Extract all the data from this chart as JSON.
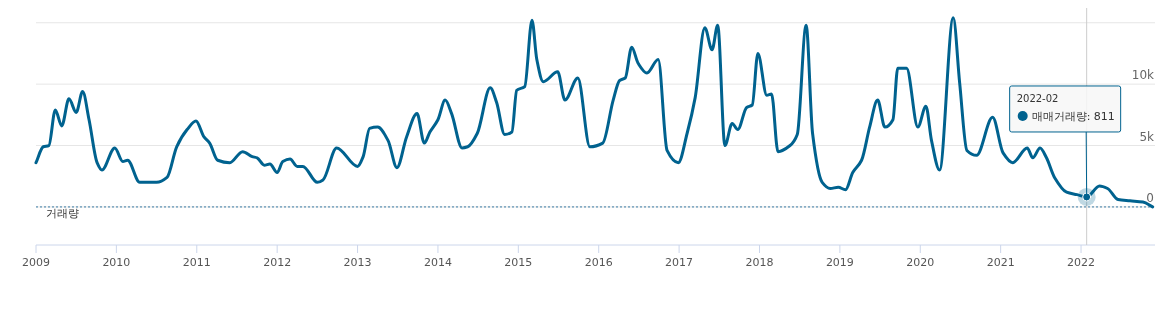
{
  "chart_data": {
    "type": "line",
    "xlim": [
      2009,
      2022.92
    ],
    "ylim": [
      -3100,
      16200
    ],
    "xticks": [
      2009,
      2010,
      2011,
      2012,
      2013,
      2014,
      2015,
      2016,
      2017,
      2018,
      2019,
      2020,
      2021,
      2022
    ],
    "yticks": [
      {
        "value": 0,
        "label": "0"
      },
      {
        "value": 5000,
        "label": "5k"
      },
      {
        "value": 10000,
        "label": "10k"
      },
      {
        "value": 15000,
        "label": null
      }
    ],
    "grid": "y",
    "marker": "none",
    "line_style": "solid",
    "series": [
      {
        "color": "#00628f",
        "x": [
          2009.0,
          2009.09,
          2009.16,
          2009.24,
          2009.32,
          2009.41,
          2009.5,
          2009.58,
          2009.66,
          2009.76,
          2009.82,
          2009.98,
          2010.08,
          2010.14,
          2010.29,
          2010.5,
          2010.63,
          2010.75,
          2010.88,
          2010.99,
          2011.09,
          2011.16,
          2011.26,
          2011.41,
          2011.57,
          2011.69,
          2011.75,
          2011.84,
          2011.91,
          2012.0,
          2012.07,
          2012.16,
          2012.25,
          2012.32,
          2012.5,
          2012.57,
          2012.74,
          2013.0,
          2013.07,
          2013.15,
          2013.25,
          2013.38,
          2013.49,
          2013.61,
          2013.74,
          2013.83,
          2013.9,
          2014.0,
          2014.09,
          2014.17,
          2014.3,
          2014.37,
          2014.49,
          2014.65,
          2014.73,
          2014.83,
          2014.92,
          2014.98,
          2015.08,
          2015.17,
          2015.23,
          2015.31,
          2015.49,
          2015.58,
          2015.74,
          2015.89,
          2016.05,
          2016.18,
          2016.26,
          2016.33,
          2016.41,
          2016.49,
          2016.6,
          2016.74,
          2016.85,
          2016.99,
          2017.1,
          2017.2,
          2017.32,
          2017.41,
          2017.48,
          2017.57,
          2017.66,
          2017.73,
          2017.84,
          2017.91,
          2017.98,
          2018.09,
          2018.15,
          2018.23,
          2018.38,
          2018.47,
          2018.58,
          2018.66,
          2018.78,
          2018.88,
          2018.98,
          2019.07,
          2019.16,
          2019.27,
          2019.37,
          2019.47,
          2019.56,
          2019.66,
          2019.72,
          2019.83,
          2019.97,
          2020.07,
          2020.14,
          2020.24,
          2020.41,
          2020.49,
          2020.58,
          2020.7,
          2020.9,
          2021.03,
          2021.15,
          2021.33,
          2021.4,
          2021.49,
          2021.57,
          2021.67,
          2021.82,
          2021.95,
          2022.07,
          2022.23,
          2022.33,
          2022.46,
          2022.61,
          2022.77,
          2022.89
        ],
        "values": [
          3600,
          4900,
          5000,
          7900,
          6600,
          8800,
          7700,
          9400,
          7100,
          3600,
          3000,
          4800,
          3700,
          3800,
          2000,
          2000,
          2400,
          4900,
          6300,
          7000,
          5700,
          5200,
          3800,
          3600,
          4500,
          4100,
          4000,
          3400,
          3500,
          2800,
          3700,
          3900,
          3300,
          3300,
          2000,
          2200,
          4800,
          3300,
          4100,
          6400,
          6500,
          5400,
          3200,
          5700,
          7600,
          5200,
          6100,
          7100,
          8700,
          7600,
          4800,
          4900,
          6000,
          9700,
          8500,
          5900,
          6100,
          9500,
          9800,
          15200,
          12000,
          10200,
          11000,
          8700,
          10500,
          4900,
          5200,
          8700,
          10300,
          10500,
          13000,
          11700,
          10900,
          12000,
          4600,
          3600,
          6000,
          8900,
          14600,
          12800,
          14800,
          5000,
          6800,
          6300,
          8100,
          8300,
          12500,
          9100,
          9200,
          4500,
          5000,
          5900,
          14800,
          6000,
          2000,
          1500,
          1600,
          1400,
          2800,
          3800,
          6500,
          8700,
          6500,
          7100,
          11300,
          11300,
          6500,
          8200,
          5400,
          3000,
          15400,
          10100,
          4600,
          4200,
          7300,
          4400,
          3600,
          4800,
          4000,
          4800,
          4000,
          2400,
          1200,
          1000,
          811,
          1700,
          1500,
          600,
          500,
          400,
          0
        ]
      }
    ],
    "ref_lines": [
      {
        "axis": "y",
        "value": 0,
        "label": "거래량",
        "color": "#3a7ca5",
        "line_style": "dotted"
      },
      {
        "axis": "x",
        "value": 2022.07,
        "color": "#cccccc",
        "line_style": "solid"
      }
    ],
    "annotations": [
      "2022-02",
      {
        "text": "매매거래량: 811",
        "x": 2022.07,
        "y": 811
      }
    ]
  }
}
